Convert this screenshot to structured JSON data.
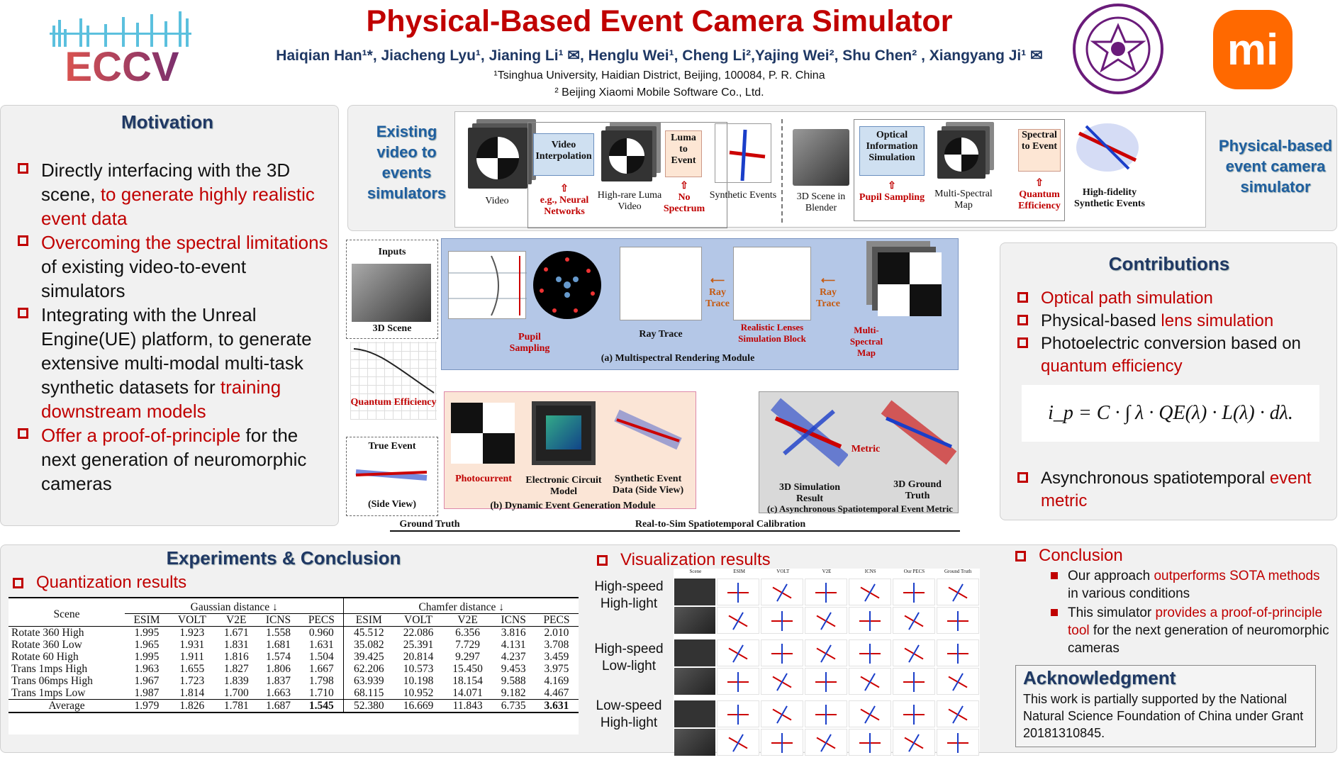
{
  "header": {
    "title": "Physical-Based Event Camera Simulator",
    "authors": "Haiqian Han¹*, Jiacheng Lyu¹, Jianing Li¹ ✉, Henglu Wei¹, Cheng Li²,Yajing Wei², Shu Chen² , Xiangyang Ji¹ ✉",
    "affil1": "¹Tsinghua University, Haidian District, Beijing, 100084, P. R. China",
    "affil2": "² Beijing Xiaomi Mobile Software Co., Ltd.",
    "eccv_logo": "ECCV",
    "mi_logo": "mi"
  },
  "motivation": {
    "title": "Motivation",
    "items": [
      {
        "a": "Directly interfacing with the 3D scene, ",
        "b": "to generate highly realistic event data",
        "c": ""
      },
      {
        "a": "",
        "b": "Overcoming the spectral limitations",
        "c": " of existing video-to-event simulators"
      },
      {
        "a": "Integrating with the Unreal Engine(UE) platform, to generate extensive multi-modal multi-task synthetic datasets for ",
        "b": "training downstream models",
        "c": ""
      },
      {
        "a": "",
        "b": "Offer a proof-of-principle",
        "c": " for the next generation of neuromorphic cameras"
      }
    ]
  },
  "overview": {
    "left_label": "Existing video to events simulators",
    "right_label": "Physical-based event camera simulator",
    "video": "Video",
    "video_interp": "Video Interpolation",
    "neural": "e.g., Neural Networks",
    "highrate": "High-rare Luma Video",
    "luma": "Luma to Event",
    "nospec": "No Spectrum",
    "synth": "Synthetic Events",
    "blender": "3D Scene in Blender",
    "optical": "Optical Information Simulation",
    "pupil": "Pupil Sampling",
    "multispec": "Multi-Spectral Map",
    "spectral": "Spectral to Event",
    "qe": "Quantum Efficiency",
    "hifi": "High-fidelity Synthetic Events"
  },
  "pipeline": {
    "inputs": "Inputs",
    "scene3d": "3D Scene",
    "qe": "Quantum Efficiency",
    "true_event": "True Event",
    "side_view": "(Side View)",
    "pupil": "Pupil Sampling",
    "raytrace": "Ray Trace",
    "raytrace_arrow1": "Ray Trace",
    "raytrace_arrow2": "Ray Trace",
    "lenses": "Realistic Lenses Simulation Block",
    "msmap": "Multi-Spectral Map",
    "module_a": "(a) Multispectral Rendering Module",
    "photocurrent": "Photocurrent",
    "circuit": "Electronic Circuit Model",
    "synth_data": "Synthetic Event Data (Side View)",
    "module_b": "(b) Dynamic Event Generation Module",
    "sim3d": "3D Simulation Result",
    "metric": "Metric",
    "gt3d": "3D Ground Truth",
    "module_c": "(c) Asynchronous Spatiotemporal Event Metric",
    "ground_truth": "Ground Truth",
    "calib": "Real-to-Sim Spatiotemporal Calibration"
  },
  "contributions": {
    "title": "Contributions",
    "items": [
      {
        "a": "",
        "b": "Optical path simulation",
        "c": ""
      },
      {
        "a": "Physical-based ",
        "b": "lens simulation",
        "c": ""
      },
      {
        "a": "Photoelectric conversion based on ",
        "b": "quantum efficiency",
        "c": ""
      },
      {
        "a": "Asynchronous spatiotemporal ",
        "b": "event metric",
        "c": ""
      }
    ],
    "formula": "i_p = C · ∫ λ · QE(λ) · L(λ) · dλ."
  },
  "experiments": {
    "title": "Experiments & Conclusion",
    "quant_title": "Quantization results",
    "table": {
      "scene_header": "Scene",
      "group1": "Gaussian distance ↓",
      "group2": "Chamfer distance ↓",
      "cols": [
        "ESIM",
        "VOLT",
        "V2E",
        "ICNS",
        "PECS",
        "ESIM",
        "VOLT",
        "V2E",
        "ICNS",
        "PECS"
      ],
      "rows": [
        [
          "Rotate 360 High",
          "1.995",
          "1.923",
          "1.671",
          "1.558",
          "0.960",
          "45.512",
          "22.086",
          "6.356",
          "3.816",
          "2.010"
        ],
        [
          "Rotate 360 Low",
          "1.965",
          "1.931",
          "1.831",
          "1.681",
          "1.631",
          "35.082",
          "25.391",
          "7.729",
          "4.131",
          "3.708"
        ],
        [
          "Rotate 60 High",
          "1.995",
          "1.911",
          "1.816",
          "1.574",
          "1.504",
          "39.425",
          "20.814",
          "9.297",
          "4.237",
          "3.459"
        ],
        [
          "Trans 1mps High",
          "1.963",
          "1.655",
          "1.827",
          "1.806",
          "1.667",
          "62.206",
          "10.573",
          "15.450",
          "9.453",
          "3.975"
        ],
        [
          "Trans 06mps High",
          "1.967",
          "1.723",
          "1.839",
          "1.837",
          "1.798",
          "63.939",
          "10.198",
          "18.154",
          "9.588",
          "4.169"
        ],
        [
          "Trans 1mps Low",
          "1.987",
          "1.814",
          "1.700",
          "1.663",
          "1.710",
          "68.115",
          "10.952",
          "14.071",
          "9.182",
          "4.467"
        ]
      ],
      "avg": [
        "Average",
        "1.979",
        "1.826",
        "1.781",
        "1.687",
        "1.545",
        "52.380",
        "16.669",
        "11.843",
        "6.735",
        "3.631"
      ]
    },
    "vis_title": "Visualization results",
    "vis_cols": [
      "Scene",
      "ESIM",
      "VOLT",
      "V2E",
      "ICNS",
      "Our PECS",
      "Ground Truth"
    ],
    "vis_rows": [
      "High-speed High-light",
      "High-speed Low-light",
      "Low-speed High-light"
    ]
  },
  "conclusion": {
    "title": "Conclusion",
    "items": [
      {
        "a": "Our approach ",
        "b": "outperforms SOTA methods",
        "c": " in various conditions"
      },
      {
        "a": "This simulator ",
        "b": "provides a proof-of-principle tool",
        "c": " for the next generation of neuromorphic cameras"
      }
    ]
  },
  "ack": {
    "title": "Acknowledgment",
    "text": "This work is partially supported by the National Natural Science Foundation of China under Grant 20181310845."
  },
  "colors": {
    "accent": "#c00000",
    "title": "#1f3864",
    "panel": "#f1f1f1"
  }
}
